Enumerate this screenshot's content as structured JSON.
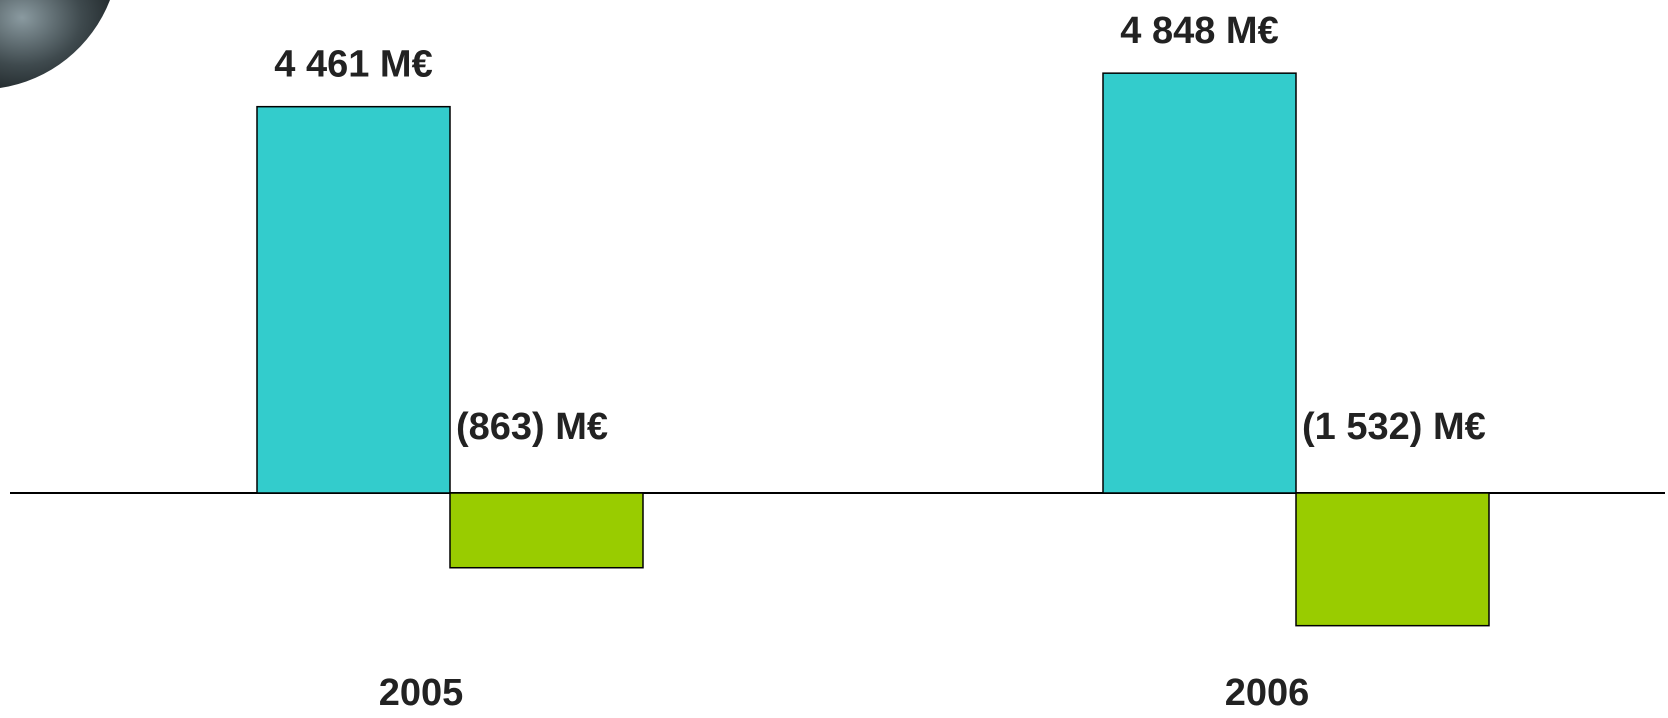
{
  "chart_data": {
    "type": "bar",
    "categories": [
      "2005",
      "2006"
    ],
    "series": [
      {
        "color": "#33cccc",
        "values": [
          4461,
          4848
        ],
        "value_labels": [
          "4 461 M€",
          "4 848 M€"
        ]
      },
      {
        "color": "#99cc00",
        "values": [
          -863,
          -1532
        ],
        "value_labels": [
          "(863) M€",
          "(1 532) M€"
        ]
      }
    ]
  }
}
